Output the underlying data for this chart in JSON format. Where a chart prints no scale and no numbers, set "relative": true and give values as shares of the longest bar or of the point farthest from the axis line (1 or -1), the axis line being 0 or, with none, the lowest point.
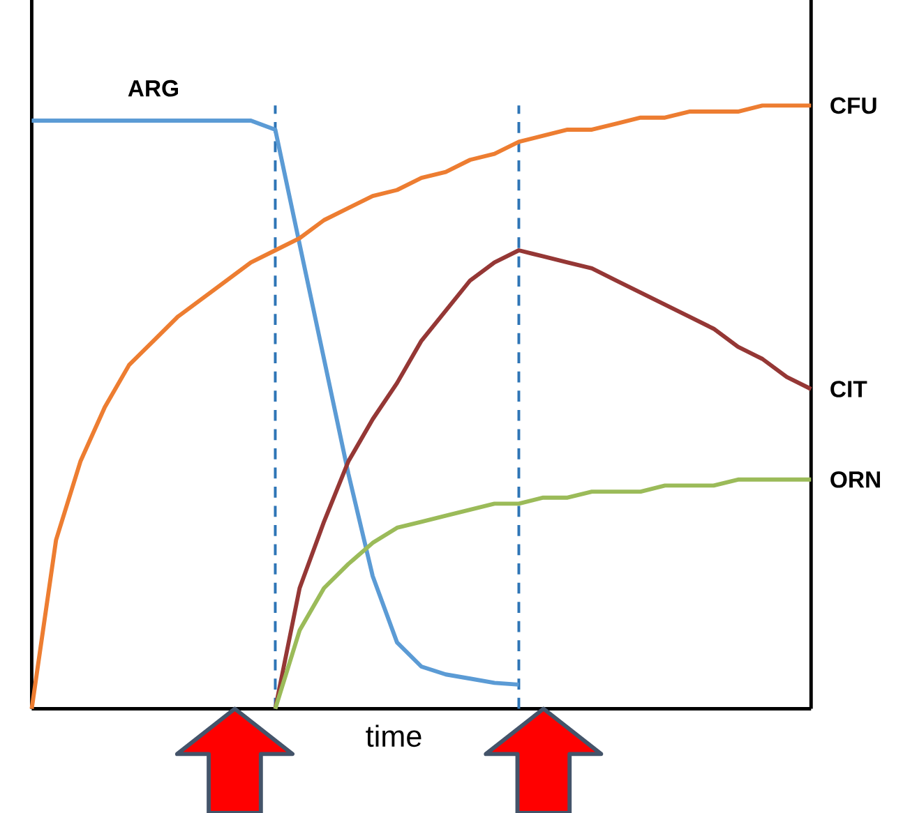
{
  "chart_data": {
    "type": "line",
    "relative": true,
    "xlabel": "time",
    "categories": [
      null,
      null,
      null,
      null,
      null,
      null,
      null,
      null,
      null,
      null,
      null,
      null,
      null,
      null,
      null,
      null,
      null,
      null,
      null,
      null,
      null,
      null,
      null,
      null,
      null,
      null,
      null,
      null,
      null,
      null,
      null,
      null,
      null
    ],
    "series": [
      {
        "name": "ARG",
        "color": "#5b9bd5",
        "values": [
          0.975,
          0.975,
          0.975,
          0.975,
          0.975,
          0.975,
          0.975,
          0.975,
          0.975,
          0.975,
          0.96,
          0.77,
          0.58,
          0.39,
          0.22,
          0.11,
          0.07,
          0.057,
          0.05,
          0.043,
          0.04,
          null,
          null,
          null,
          null,
          null,
          null,
          null,
          null,
          null,
          null,
          null,
          null
        ]
      },
      {
        "name": "CFU",
        "color": "#ed7d31",
        "values": [
          0,
          0.28,
          0.41,
          0.5,
          0.57,
          0.61,
          0.65,
          0.68,
          0.71,
          0.74,
          0.76,
          0.78,
          0.81,
          0.83,
          0.85,
          0.86,
          0.88,
          0.89,
          0.91,
          0.92,
          0.94,
          0.95,
          0.96,
          0.96,
          0.97,
          0.98,
          0.98,
          0.99,
          0.99,
          0.99,
          1,
          1,
          1
        ]
      },
      {
        "name": "CIT",
        "color": "#953735",
        "values": [
          null,
          null,
          null,
          null,
          null,
          null,
          null,
          null,
          null,
          null,
          0,
          0.2,
          0.31,
          0.41,
          0.48,
          0.54,
          0.61,
          0.66,
          0.71,
          0.74,
          0.76,
          0.75,
          0.74,
          0.73,
          0.71,
          0.69,
          0.67,
          0.65,
          0.63,
          0.6,
          0.58,
          0.55,
          0.53
        ]
      },
      {
        "name": "ORN",
        "color": "#9bbb59",
        "values": [
          null,
          null,
          null,
          null,
          null,
          null,
          null,
          null,
          null,
          null,
          0,
          0.13,
          0.2,
          0.24,
          0.275,
          0.3,
          0.31,
          0.32,
          0.33,
          0.34,
          0.34,
          0.35,
          0.35,
          0.36,
          0.36,
          0.36,
          0.37,
          0.37,
          0.37,
          0.38,
          0.38,
          0.38,
          0.38
        ]
      }
    ]
  }
}
